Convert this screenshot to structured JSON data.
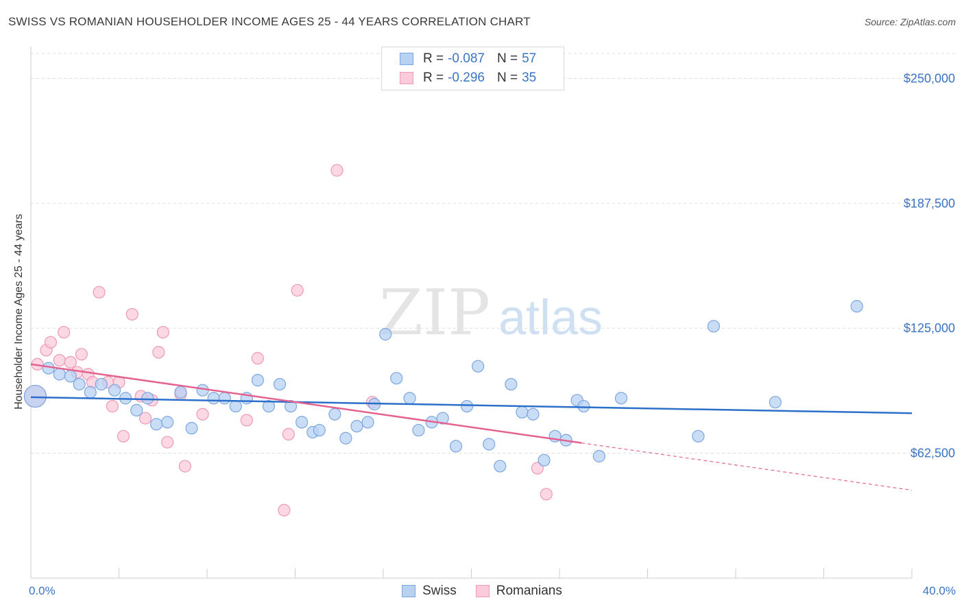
{
  "header": {
    "title": "SWISS VS ROMANIAN HOUSEHOLDER INCOME AGES 25 - 44 YEARS CORRELATION CHART",
    "source": "Source: ZipAtlas.com"
  },
  "watermark": {
    "zip": "ZIP",
    "atlas": "atlas"
  },
  "legend": {
    "swiss": {
      "r_label": "R =",
      "r_value": "-0.087",
      "n_label": "N =",
      "n_value": "57"
    },
    "romanians": {
      "r_label": "R =",
      "r_value": "-0.296",
      "n_label": "N =",
      "n_value": "35"
    }
  },
  "bottom_legend": {
    "swiss": "Swiss",
    "romanians": "Romanians"
  },
  "colors": {
    "swiss_fill": "#b8d2f3",
    "swiss_stroke": "#7aa6e0",
    "swiss_line": "#2c6fcb",
    "rom_fill": "#fbcadb",
    "rom_stroke": "#ee99b6",
    "rom_line": "#e4628f",
    "axis_label": "#3a74c5",
    "grid": "#dddddd"
  },
  "chart_data": {
    "type": "scatter",
    "title": "SWISS VS ROMANIAN HOUSEHOLDER INCOME AGES 25 - 44 YEARS CORRELATION CHART",
    "xlabel": "",
    "ylabel": "Householder Income Ages 25 - 44 years",
    "xlim": [
      0,
      40
    ],
    "ylim": [
      0,
      262500
    ],
    "x_tick_labels": {
      "min": "0.0%",
      "max": "40.0%"
    },
    "y_ticks": [
      62500,
      125000,
      187500,
      250000
    ],
    "y_tick_labels": [
      "$62,500",
      "$125,000",
      "$187,500",
      "$250,000"
    ],
    "grid": true,
    "series": [
      {
        "name": "Swiss",
        "trend": {
          "x0": 0,
          "y0": 90500,
          "x1": 40,
          "y1": 82500,
          "dashed_from": null
        },
        "points": [
          [
            0.2,
            91000,
            "big"
          ],
          [
            0.8,
            105000
          ],
          [
            1.3,
            102000
          ],
          [
            1.8,
            101000
          ],
          [
            2.2,
            97000
          ],
          [
            2.7,
            93000
          ],
          [
            3.2,
            97000
          ],
          [
            3.8,
            94000
          ],
          [
            4.3,
            90000
          ],
          [
            4.8,
            84000
          ],
          [
            5.3,
            90000
          ],
          [
            5.7,
            77000
          ],
          [
            6.2,
            78000
          ],
          [
            6.8,
            93000
          ],
          [
            7.3,
            75000
          ],
          [
            7.8,
            94000
          ],
          [
            8.3,
            90000
          ],
          [
            8.8,
            90000
          ],
          [
            9.3,
            86000
          ],
          [
            9.8,
            90000
          ],
          [
            10.3,
            99000
          ],
          [
            10.8,
            86000
          ],
          [
            11.3,
            97000
          ],
          [
            11.8,
            86000
          ],
          [
            12.3,
            78000
          ],
          [
            12.8,
            73000
          ],
          [
            13.1,
            74000
          ],
          [
            13.8,
            82000
          ],
          [
            14.3,
            70000
          ],
          [
            14.8,
            76000
          ],
          [
            15.3,
            78000
          ],
          [
            15.6,
            87000
          ],
          [
            16.1,
            122000
          ],
          [
            16.6,
            100000
          ],
          [
            17.2,
            90000
          ],
          [
            17.6,
            74000
          ],
          [
            18.2,
            78000
          ],
          [
            18.7,
            80000
          ],
          [
            19.3,
            66000
          ],
          [
            19.8,
            86000
          ],
          [
            20.3,
            106000
          ],
          [
            20.8,
            67000
          ],
          [
            21.3,
            56000
          ],
          [
            21.8,
            97000
          ],
          [
            22.3,
            83000
          ],
          [
            22.8,
            82000
          ],
          [
            23.3,
            59000
          ],
          [
            23.8,
            71000
          ],
          [
            24.3,
            69000
          ],
          [
            24.8,
            89000
          ],
          [
            25.1,
            86000
          ],
          [
            25.8,
            61000
          ],
          [
            26.8,
            90000
          ],
          [
            30.3,
            71000
          ],
          [
            31.0,
            126000
          ],
          [
            33.8,
            88000
          ],
          [
            37.5,
            136000
          ]
        ]
      },
      {
        "name": "Romanians",
        "trend": {
          "x0": 0,
          "y0": 107000,
          "x1": 40,
          "y1": 44000,
          "dashed_from": 25.0
        },
        "points": [
          [
            0.2,
            91000,
            "big"
          ],
          [
            0.3,
            107000
          ],
          [
            0.7,
            114000
          ],
          [
            0.9,
            118000
          ],
          [
            1.3,
            109000
          ],
          [
            1.5,
            123000
          ],
          [
            1.8,
            108000
          ],
          [
            2.1,
            103000
          ],
          [
            2.3,
            112000
          ],
          [
            2.6,
            102000
          ],
          [
            2.8,
            98000
          ],
          [
            3.1,
            143000
          ],
          [
            3.5,
            98000
          ],
          [
            3.7,
            86000
          ],
          [
            4.0,
            98000
          ],
          [
            4.2,
            71000
          ],
          [
            4.6,
            132000
          ],
          [
            5.0,
            91000
          ],
          [
            5.2,
            80000
          ],
          [
            5.5,
            89000
          ],
          [
            5.8,
            113000
          ],
          [
            6.0,
            123000
          ],
          [
            6.2,
            68000
          ],
          [
            6.8,
            92000
          ],
          [
            7.0,
            56000
          ],
          [
            7.8,
            82000
          ],
          [
            9.8,
            79000
          ],
          [
            10.3,
            110000
          ],
          [
            11.5,
            34000
          ],
          [
            11.7,
            72000
          ],
          [
            12.1,
            144000
          ],
          [
            13.9,
            204000
          ],
          [
            15.5,
            88000
          ],
          [
            23.0,
            55000
          ],
          [
            23.4,
            42000
          ]
        ]
      }
    ]
  }
}
